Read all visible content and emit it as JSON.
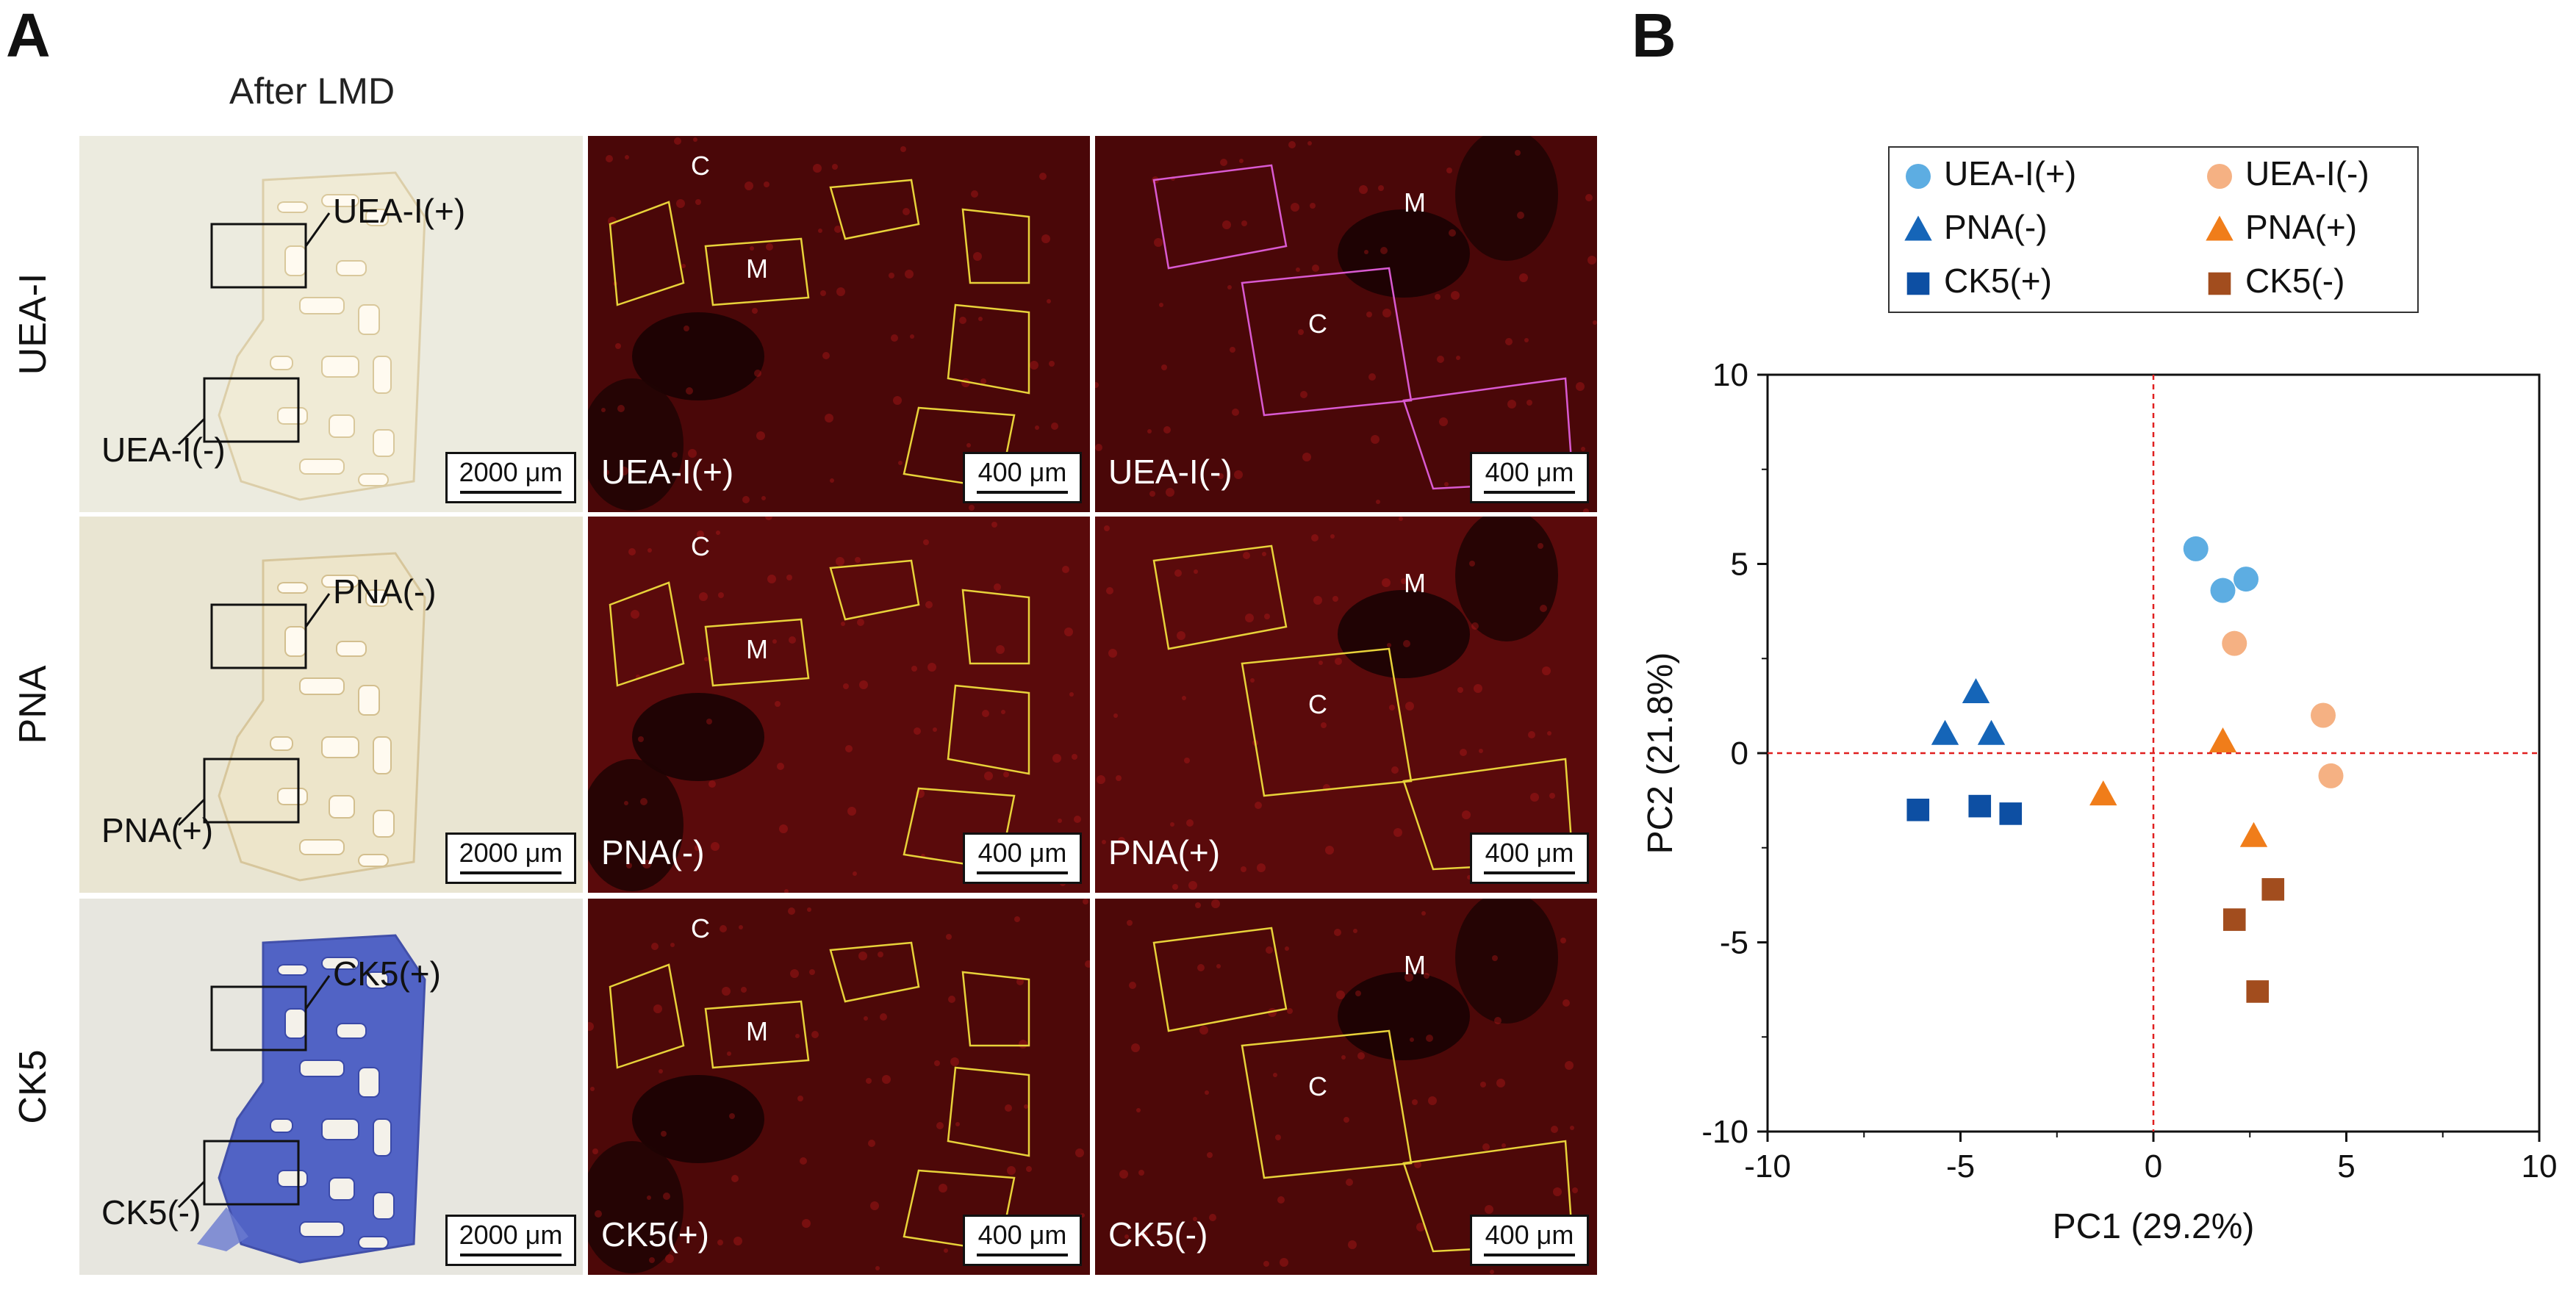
{
  "panel_a": {
    "letter": "A",
    "header": "After LMD",
    "rows": [
      {
        "row_label": "UEA-I",
        "bf_top_label": "UEA-I(+)",
        "bf_bottom_label": "UEA-I(-)",
        "bf_scale": "2000 μm",
        "f1_label": "UEA-I(+)",
        "f1_scale": "400 μm",
        "f1_letters": [
          "C",
          "M"
        ],
        "f2_label": "UEA-I(-)",
        "f2_scale": "400 μm",
        "f2_letters": [
          "M",
          "C"
        ]
      },
      {
        "row_label": "PNA",
        "bf_top_label": "PNA(-)",
        "bf_bottom_label": "PNA(+)",
        "bf_scale": "2000 μm",
        "f1_label": "PNA(-)",
        "f1_scale": "400 μm",
        "f1_letters": [
          "C",
          "M"
        ],
        "f2_label": "PNA(+)",
        "f2_scale": "400 μm",
        "f2_letters": [
          "M",
          "C"
        ]
      },
      {
        "row_label": "CK5",
        "bf_top_label": "CK5(+)",
        "bf_bottom_label": "CK5(-)",
        "bf_scale": "2000 μm",
        "f1_label": "CK5(+)",
        "f1_scale": "400 μm",
        "f1_letters": [
          "C",
          "M"
        ],
        "f2_label": "CK5(-)",
        "f2_scale": "400 μm",
        "f2_letters": [
          "M",
          "C"
        ]
      }
    ]
  },
  "panel_b": {
    "letter": "B"
  },
  "chart_data": {
    "type": "scatter",
    "xlabel": "PC1 (29.2%)",
    "ylabel": "PC2 (21.8%)",
    "xlim": [
      -10,
      10
    ],
    "ylim": [
      -10,
      10
    ],
    "xticks": [
      "-10",
      "-5",
      "0",
      "5",
      "10"
    ],
    "yticks": [
      "10",
      "5",
      "0",
      "-5",
      "-10"
    ],
    "reference_lines": "dashed red lines at x=0 and y=0",
    "legend_position": "top",
    "series": [
      {
        "name": "UEA-I(+)",
        "marker": "circle",
        "color": "#5dade2",
        "points": [
          [
            1.1,
            5.4
          ],
          [
            1.8,
            4.3
          ],
          [
            2.4,
            4.6
          ]
        ]
      },
      {
        "name": "UEA-I(-)",
        "marker": "circle",
        "color": "#f5b183",
        "points": [
          [
            2.1,
            2.9
          ],
          [
            4.4,
            1.0
          ],
          [
            4.6,
            -0.6
          ]
        ]
      },
      {
        "name": "PNA(-)",
        "marker": "triangle",
        "color": "#1565b8",
        "points": [
          [
            -4.6,
            1.6
          ],
          [
            -5.4,
            0.5
          ],
          [
            -4.2,
            0.5
          ]
        ]
      },
      {
        "name": "PNA(+)",
        "marker": "triangle",
        "color": "#f07d1a",
        "points": [
          [
            1.8,
            0.3
          ],
          [
            -1.3,
            -1.1
          ],
          [
            2.6,
            -2.2
          ]
        ]
      },
      {
        "name": "CK5(+)",
        "marker": "square",
        "color": "#0d4fa3",
        "points": [
          [
            -6.1,
            -1.5
          ],
          [
            -4.5,
            -1.4
          ],
          [
            -3.7,
            -1.6
          ]
        ]
      },
      {
        "name": "CK5(-)",
        "marker": "square",
        "color": "#a24d1e",
        "points": [
          [
            2.1,
            -4.4
          ],
          [
            3.1,
            -3.6
          ],
          [
            2.7,
            -6.3
          ]
        ]
      }
    ]
  }
}
